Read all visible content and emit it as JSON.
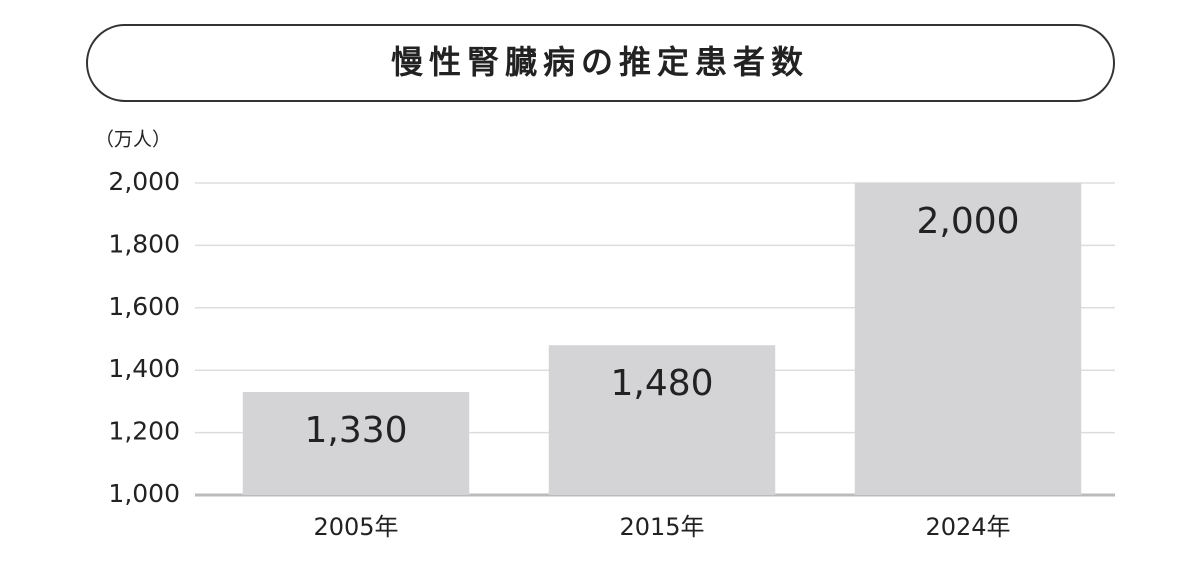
{
  "chart_data": {
    "type": "bar",
    "title": "慢性腎臓病の推定患者数",
    "y_label": "（万人）",
    "categories": [
      "2005年",
      "2015年",
      "2024年"
    ],
    "values": [
      1330,
      1480,
      2000
    ],
    "value_labels": [
      "1,330",
      "1,480",
      "2,000"
    ],
    "color": "#d4d3d6",
    "ylim": [
      1000,
      2000
    ],
    "yticks": [
      {
        "value": 1000,
        "label": "1,000"
      },
      {
        "value": 1200,
        "label": "1,200"
      },
      {
        "value": 1400,
        "label": "1,400"
      },
      {
        "value": 1600,
        "label": "1,600"
      },
      {
        "value": 1800,
        "label": "1,800"
      },
      {
        "value": 2000,
        "label": "2,000"
      }
    ],
    "grid": true
  }
}
